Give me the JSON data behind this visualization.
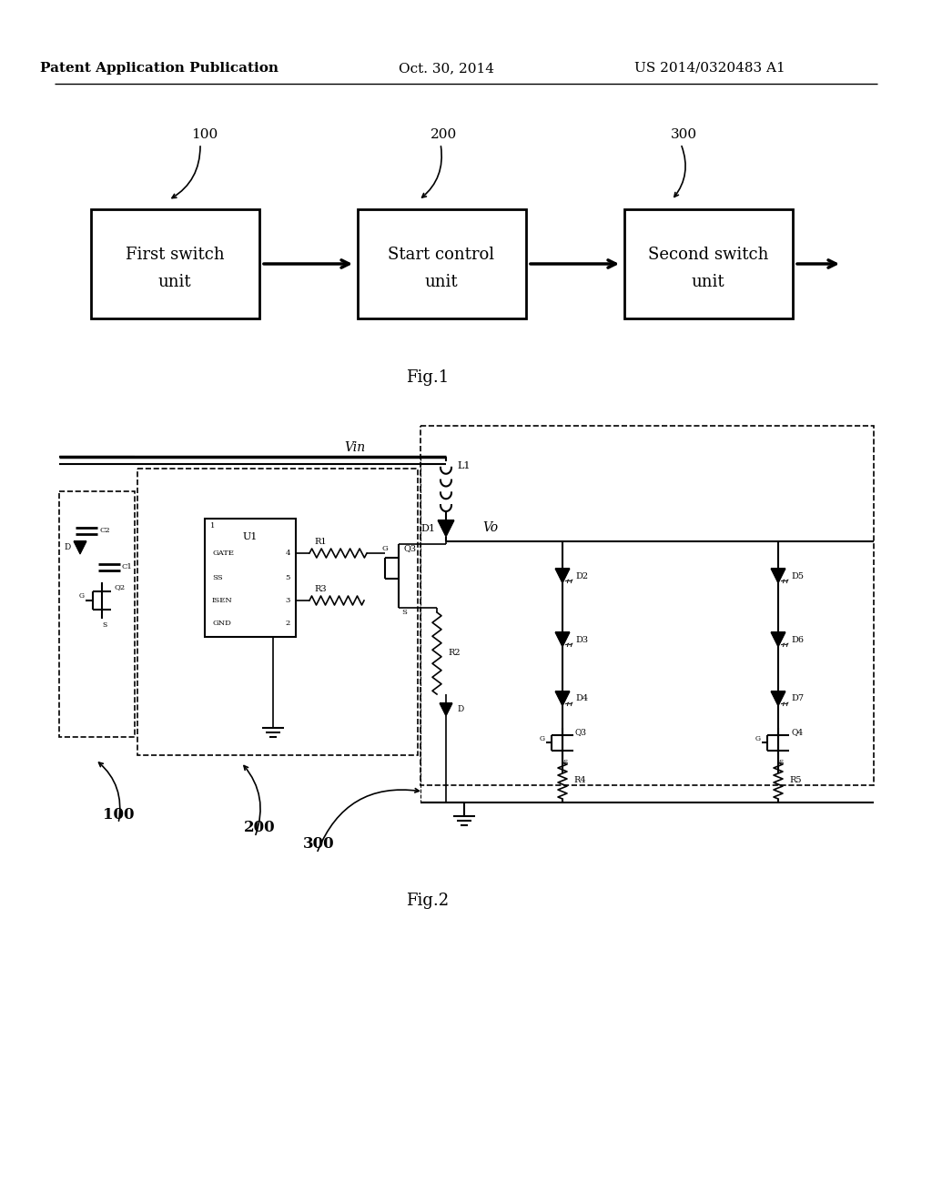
{
  "bg_color": "#ffffff",
  "header_left": "Patent Application Publication",
  "header_center": "Oct. 30, 2014",
  "header_right": "US 2014/0320483 A1",
  "fig1_caption": "Fig.1",
  "fig2_caption": "Fig.2",
  "box1_label": "First switch\nunit",
  "box2_label": "Start control\nunit",
  "box3_label": "Second switch\nunit",
  "ref100": "100",
  "ref200": "200",
  "ref300": "300"
}
